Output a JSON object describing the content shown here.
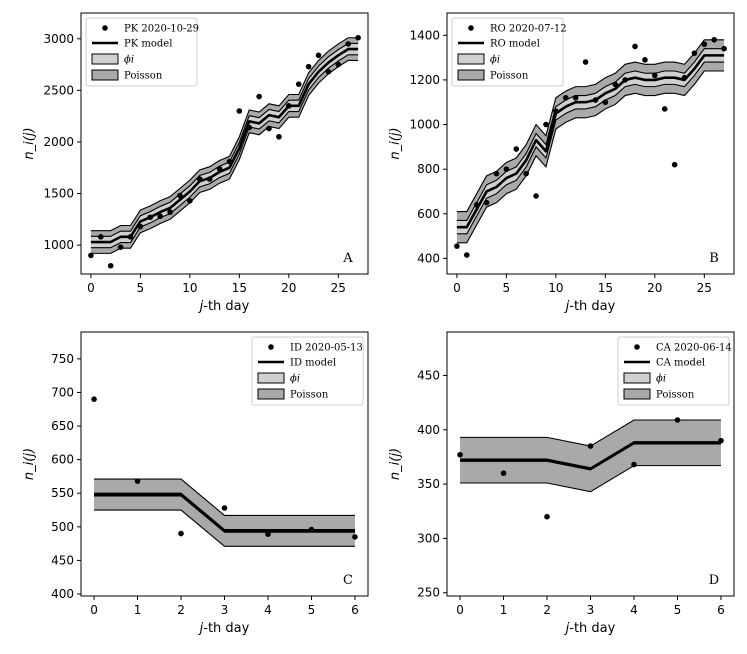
{
  "chart_data": [
    {
      "type": "line",
      "panel_tag": "A",
      "xlabel_prefix": "j",
      "xlabel_suffix": "-th day",
      "ylabel": "n_i(j)",
      "xlim": [
        -1,
        28
      ],
      "ylim": [
        720,
        3250
      ],
      "xticks": [
        0,
        5,
        10,
        15,
        20,
        25
      ],
      "yticks": [
        1000,
        1500,
        2000,
        2500,
        3000
      ],
      "legend": {
        "data": "PK 2020-10-29",
        "model": "PK model",
        "phi": "ϕi",
        "poisson": "Poisson"
      },
      "observed": {
        "x": [
          0,
          1,
          2,
          3,
          4,
          5,
          6,
          7,
          8,
          9,
          10,
          11,
          12,
          13,
          14,
          15,
          16,
          17,
          18,
          19,
          20,
          21,
          22,
          23,
          24,
          25,
          26,
          27
        ],
        "y": [
          900,
          1080,
          800,
          980,
          1080,
          1180,
          1270,
          1280,
          1320,
          1480,
          1430,
          1640,
          1640,
          1740,
          1810,
          2300,
          2140,
          2440,
          2130,
          2050,
          2350,
          2560,
          2730,
          2840,
          2680,
          2750,
          2950,
          3010
        ]
      },
      "model": {
        "x": [
          0,
          1,
          2,
          3,
          4,
          5,
          6,
          7,
          8,
          9,
          10,
          11,
          12,
          13,
          14,
          15,
          16,
          17,
          18,
          19,
          20,
          21,
          22,
          23,
          24,
          25,
          26,
          27
        ],
        "y": [
          1030,
          1030,
          1030,
          1080,
          1080,
          1230,
          1270,
          1320,
          1360,
          1440,
          1520,
          1620,
          1650,
          1710,
          1750,
          1940,
          2200,
          2180,
          2260,
          2240,
          2350,
          2350,
          2560,
          2680,
          2770,
          2840,
          2900,
          2900
        ],
        "phi_halfwidth": 55,
        "poisson_halfwidth": 110
      }
    },
    {
      "type": "line",
      "panel_tag": "B",
      "xlabel_prefix": "j",
      "xlabel_suffix": "-th day",
      "ylabel": "n_i(j)",
      "xlim": [
        -1,
        28
      ],
      "ylim": [
        330,
        1500
      ],
      "xticks": [
        0,
        5,
        10,
        15,
        20,
        25
      ],
      "yticks": [
        400,
        600,
        800,
        1000,
        1200,
        1400
      ],
      "legend": {
        "data": "RO 2020-07-12",
        "model": "RO model",
        "phi": "ϕi",
        "poisson": "Poisson"
      },
      "observed": {
        "x": [
          0,
          1,
          2,
          3,
          4,
          5,
          6,
          7,
          8,
          9,
          10,
          11,
          12,
          13,
          14,
          15,
          16,
          17,
          18,
          19,
          20,
          21,
          22,
          23,
          24,
          25,
          26,
          27
        ],
        "y": [
          455,
          415,
          640,
          650,
          780,
          800,
          890,
          780,
          680,
          1000,
          1060,
          1120,
          1120,
          1280,
          1110,
          1100,
          1180,
          1200,
          1350,
          1290,
          1220,
          1070,
          820,
          1210,
          1320,
          1360,
          1380,
          1340
        ]
      },
      "model": {
        "x": [
          0,
          1,
          2,
          3,
          4,
          5,
          6,
          7,
          8,
          9,
          10,
          11,
          12,
          13,
          14,
          15,
          16,
          17,
          18,
          19,
          20,
          21,
          22,
          23,
          24,
          25,
          26,
          27
        ],
        "y": [
          540,
          540,
          620,
          700,
          720,
          760,
          780,
          840,
          930,
          880,
          1050,
          1080,
          1100,
          1100,
          1110,
          1140,
          1160,
          1200,
          1210,
          1200,
          1200,
          1210,
          1210,
          1200,
          1250,
          1310,
          1310,
          1310
        ],
        "phi_halfwidth": 30,
        "poisson_halfwidth": 70
      }
    },
    {
      "type": "line",
      "panel_tag": "C",
      "xlabel_prefix": "j",
      "xlabel_suffix": "-th day",
      "ylabel": "n_i(j)",
      "xlim": [
        -0.3,
        6.3
      ],
      "ylim": [
        397,
        790
      ],
      "xticks": [
        0,
        1,
        2,
        3,
        4,
        5,
        6
      ],
      "yticks": [
        400,
        450,
        500,
        550,
        600,
        650,
        700,
        750
      ],
      "legend": {
        "data": "ID 2020-05-13",
        "model": "ID model",
        "phi": "ϕi",
        "poisson": "Poisson"
      },
      "observed": {
        "x": [
          0,
          1,
          2,
          3,
          4,
          5,
          6
        ],
        "y": [
          690,
          568,
          490,
          528,
          489,
          496,
          485
        ]
      },
      "model": {
        "x": [
          0,
          1,
          2,
          3,
          4,
          5,
          6
        ],
        "y": [
          548,
          548,
          548,
          494,
          494,
          494,
          494
        ],
        "phi_halfwidth": 2,
        "poisson_halfwidth": 23
      }
    },
    {
      "type": "line",
      "panel_tag": "D",
      "xlabel_prefix": "j",
      "xlabel_suffix": "-th day",
      "ylabel": "n_i(j)",
      "xlim": [
        -0.3,
        6.3
      ],
      "ylim": [
        247,
        490
      ],
      "xticks": [
        0,
        1,
        2,
        3,
        4,
        5,
        6
      ],
      "yticks": [
        250,
        300,
        350,
        400,
        450
      ],
      "legend": {
        "data": "CA 2020-06-14",
        "model": "CA model",
        "phi": "ϕi",
        "poisson": "Poisson"
      },
      "observed": {
        "x": [
          0,
          1,
          2,
          3,
          4,
          5,
          6
        ],
        "y": [
          377,
          360,
          320,
          385,
          368,
          409,
          390
        ]
      },
      "model": {
        "x": [
          0,
          1,
          2,
          3,
          4,
          5,
          6
        ],
        "y": [
          372,
          372,
          372,
          364,
          388,
          388,
          388
        ],
        "phi_halfwidth": 1,
        "poisson_halfwidth": 21
      }
    }
  ]
}
